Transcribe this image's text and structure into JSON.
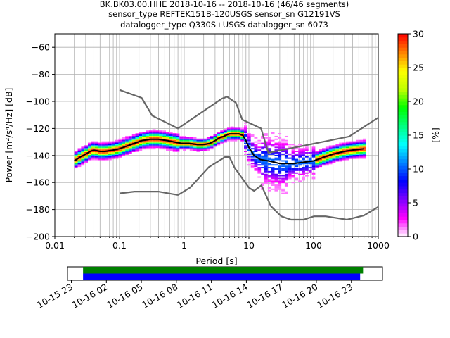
{
  "chart_data": [
    {
      "type": "heatmap",
      "title": "BK.BK03.00.HHE   2018-10-16 -- 2018-10-16  (46/46 segments)",
      "subtitle_lines": [
        "sensor_type REFTEK151B-120USGS sensor_sn G12191VS",
        "datalogger_type Q330S+USGS datalogger_sn 6073"
      ],
      "xlabel": "Period [s]",
      "ylabel": "Power [m²/s⁴/Hz] [dB]",
      "xscale": "log",
      "xlim": [
        0.01,
        1000
      ],
      "ylim": [
        -200,
        -50
      ],
      "xticks": [
        {
          "v": 0.01,
          "label": "0.01"
        },
        {
          "v": 0.1,
          "label": "0.1"
        },
        {
          "v": 1,
          "label": "1"
        },
        {
          "v": 10,
          "label": "10"
        },
        {
          "v": 100,
          "label": "100"
        },
        {
          "v": 1000,
          "label": "1000"
        }
      ],
      "yticks": [
        -60,
        -80,
        -100,
        -120,
        -140,
        -160,
        -180,
        -200
      ],
      "grid": true,
      "colorbar": {
        "label": "[%]",
        "ticks": [
          0,
          5,
          10,
          15,
          20,
          25,
          30
        ],
        "range": [
          0,
          30
        ],
        "colormap": [
          "#ffffff",
          "#ff00ff",
          "#8000ff",
          "#0000ff",
          "#0080ff",
          "#00ffff",
          "#00ff80",
          "#00ff00",
          "#c0ff00",
          "#ffff00",
          "#ff8000",
          "#ff0000"
        ]
      },
      "series": [
        {
          "name": "mean",
          "color": "#000000",
          "x": [
            0.02,
            0.025,
            0.03,
            0.035,
            0.04,
            0.05,
            0.06,
            0.08,
            0.1,
            0.13,
            0.17,
            0.22,
            0.3,
            0.4,
            0.55,
            0.7,
            0.9,
            1.2,
            1.6,
            2,
            2.5,
            3,
            3.5,
            4,
            5,
            6,
            7,
            8,
            9,
            10,
            12,
            15,
            20,
            25,
            30,
            40,
            50,
            70,
            100,
            150,
            200,
            300,
            400,
            600
          ],
          "y": [
            -144,
            -141,
            -139,
            -137,
            -136,
            -137,
            -137,
            -136,
            -135,
            -133,
            -131,
            -129,
            -128,
            -128,
            -129,
            -130,
            -131,
            -131,
            -132,
            -132,
            -131,
            -129,
            -127,
            -126,
            -124,
            -124,
            -124,
            -125,
            -129,
            -134,
            -140,
            -143,
            -144,
            -145,
            -146,
            -146,
            -146,
            -145,
            -144,
            -141,
            -139,
            -137,
            -136,
            -135
          ]
        },
        {
          "name": "high noise model",
          "color": "#666666",
          "x": [
            0.1,
            0.22,
            0.32,
            0.8,
            3.8,
            4.6,
            6.3,
            7.9,
            15.4,
            20,
            354.8,
            1000
          ],
          "y": [
            -91.5,
            -97.4,
            -110.5,
            -120,
            -98,
            -96.5,
            -101,
            -113.5,
            -120,
            -138,
            -126,
            -112
          ]
        },
        {
          "name": "low noise model",
          "color": "#666666",
          "x": [
            0.1,
            0.17,
            0.4,
            0.8,
            1.24,
            2.4,
            4.3,
            5,
            6,
            10,
            12,
            15.6,
            21.9,
            31.6,
            45,
            70,
            101,
            154,
            328,
            600,
            1000
          ],
          "y": [
            -168,
            -166.7,
            -166.7,
            -169.2,
            -163.7,
            -148.6,
            -141.1,
            -141.1,
            -149,
            -163.8,
            -166.2,
            -162.1,
            -177.5,
            -185,
            -187.5,
            -187.5,
            -185,
            -185,
            -187.5,
            -184.4,
            -178
          ]
        }
      ]
    },
    {
      "type": "bar",
      "xticks": [
        "10-15 23",
        "10-16 02",
        "10-16 05",
        "10-16 08",
        "10-16 11",
        "10-16 14",
        "10-16 17",
        "10-16 20",
        "10-16 23"
      ],
      "series": [
        {
          "name": "data",
          "color": "#008000",
          "start": "2018-10-16 00:00",
          "end": "2018-10-17 00:00"
        },
        {
          "name": "used",
          "color": "#0000ff",
          "start": "2018-10-16 00:00",
          "end": "2018-10-16 23:45"
        }
      ]
    }
  ]
}
